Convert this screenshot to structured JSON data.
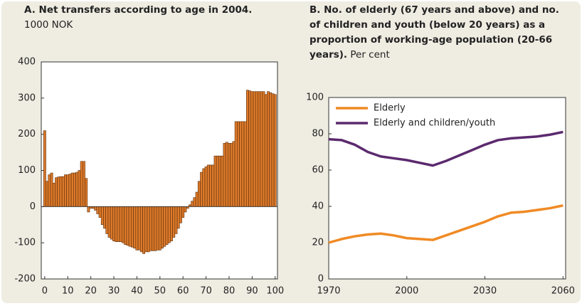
{
  "chart_data": [
    {
      "type": "bar",
      "title": "A.  Net transfers according to age in 2004.",
      "subtitle": "1000 NOK",
      "x": [
        0,
        1,
        2,
        3,
        4,
        5,
        6,
        7,
        8,
        9,
        10,
        11,
        12,
        13,
        14,
        15,
        16,
        17,
        18,
        19,
        20,
        21,
        22,
        23,
        24,
        25,
        26,
        27,
        28,
        29,
        30,
        31,
        32,
        33,
        34,
        35,
        36,
        37,
        38,
        39,
        40,
        41,
        42,
        43,
        44,
        45,
        46,
        47,
        48,
        49,
        50,
        51,
        52,
        53,
        54,
        55,
        56,
        57,
        58,
        59,
        60,
        61,
        62,
        63,
        64,
        65,
        66,
        67,
        68,
        69,
        70,
        71,
        72,
        73,
        74,
        75,
        76,
        77,
        78,
        79,
        80,
        81,
        82,
        83,
        84,
        85,
        86,
        87,
        88,
        89,
        90,
        91,
        92,
        93,
        94,
        95,
        96,
        97,
        98,
        99,
        100
      ],
      "values": [
        210,
        70,
        88,
        93,
        65,
        80,
        82,
        83,
        83,
        88,
        88,
        90,
        93,
        93,
        95,
        100,
        125,
        125,
        78,
        -15,
        -5,
        -5,
        -10,
        -20,
        -30,
        -50,
        -60,
        -75,
        -85,
        -90,
        -95,
        -97,
        -97,
        -97,
        -100,
        -105,
        -107,
        -110,
        -112,
        -115,
        -120,
        -120,
        -125,
        -130,
        -125,
        -125,
        -122,
        -122,
        -122,
        -120,
        -120,
        -115,
        -110,
        -105,
        -100,
        -95,
        -85,
        -75,
        -60,
        -45,
        -30,
        -15,
        -5,
        5,
        15,
        25,
        40,
        70,
        95,
        105,
        110,
        115,
        115,
        115,
        140,
        140,
        140,
        140,
        175,
        178,
        175,
        175,
        180,
        235,
        235,
        235,
        235,
        235,
        322,
        320,
        318,
        318,
        318,
        318,
        318,
        318,
        310,
        318,
        315,
        312,
        310
      ],
      "color": "#dd7a2a",
      "xlim": [
        -1.5,
        101
      ],
      "xticks": [
        0,
        10,
        20,
        30,
        40,
        50,
        60,
        70,
        80,
        90,
        100
      ],
      "ylim": [
        -200,
        400
      ],
      "yticks": [
        -200,
        -100,
        0,
        100,
        200,
        300,
        400
      ]
    },
    {
      "type": "line",
      "title": "B.  No. of elderly (67 years and above) and no. of children and youth (below 20 years) as a proportion of working-age population (20-66 years).",
      "unit": "Per cent",
      "x": [
        1970,
        1975,
        1980,
        1985,
        1990,
        1995,
        2000,
        2005,
        2010,
        2015,
        2020,
        2025,
        2030,
        2035,
        2040,
        2045,
        2050,
        2055,
        2060
      ],
      "series": [
        {
          "name": "Elderly",
          "color": "#f08a24",
          "values": [
            20,
            22,
            23.5,
            24.5,
            25,
            24,
            22.5,
            22,
            21.5,
            24,
            26.5,
            29,
            31.5,
            34.5,
            36.5,
            37,
            38,
            39,
            40.5
          ]
        },
        {
          "name": "Elderly and children/youth",
          "color": "#5b2a6e",
          "values": [
            77,
            76.5,
            74,
            70,
            67.5,
            66.5,
            65.5,
            64,
            62.5,
            65,
            68,
            71,
            74,
            76.5,
            77.5,
            78,
            78.5,
            79.5,
            81
          ]
        }
      ],
      "xlim": [
        1970,
        2061
      ],
      "xticks": [
        1970,
        2000,
        2030,
        2060
      ],
      "ylim": [
        0,
        100
      ],
      "yticks": [
        0,
        20,
        40,
        60,
        80,
        100
      ],
      "legend": "upper left"
    }
  ]
}
